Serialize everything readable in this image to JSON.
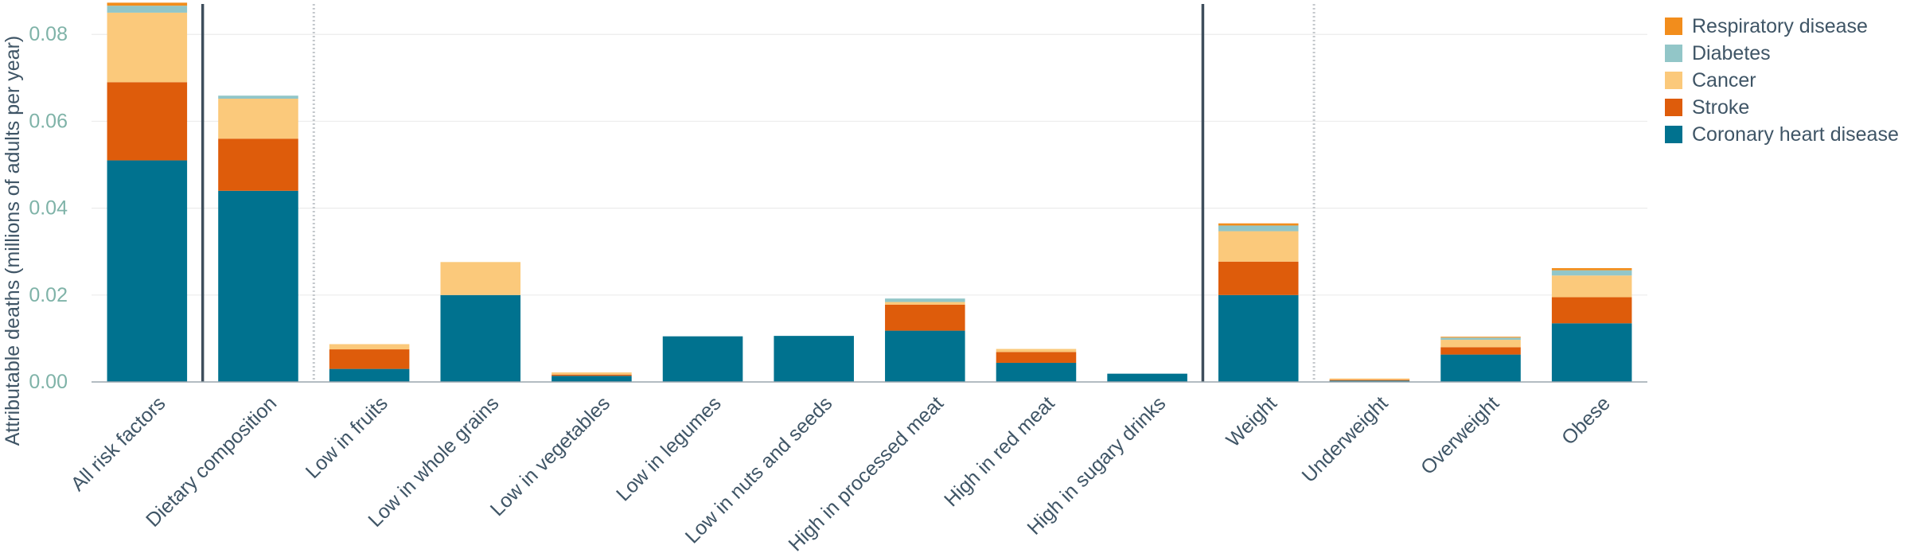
{
  "chart_data": {
    "type": "bar",
    "stacked": true,
    "ylabel": "Attributable deaths (millions of adults per year)",
    "xlabel": "",
    "ylim": [
      0,
      0.087
    ],
    "yticks": [
      0,
      0.02,
      0.04,
      0.06,
      0.08
    ],
    "ytick_labels": [
      "0.00",
      "0.02",
      "0.04",
      "0.06",
      "0.08"
    ],
    "grid": true,
    "legend_position": "top-right",
    "categories": [
      "All risk factors",
      "Dietary composition",
      "Low in fruits",
      "Low in whole grains",
      "Low in vegetables",
      "Low in legumes",
      "Low in nuts and seeds",
      "High in processed meat",
      "High in red meat",
      "High in sugary drinks",
      "Weight",
      "Underweight",
      "Overweight",
      "Obese"
    ],
    "series": [
      {
        "name": "Coronary heart disease",
        "color": "#00728f",
        "values": [
          0.051,
          0.044,
          0.003,
          0.02,
          0.0014,
          0.0105,
          0.0106,
          0.0118,
          0.0044,
          0.0019,
          0.02,
          0.0003,
          0.0063,
          0.0135
        ]
      },
      {
        "name": "Stroke",
        "color": "#de5c0b",
        "values": [
          0.018,
          0.012,
          0.0045,
          0.0,
          0.0003,
          0.0,
          0.0,
          0.006,
          0.0025,
          0.0,
          0.0077,
          0.0002,
          0.0017,
          0.006
        ]
      },
      {
        "name": "Cancer",
        "color": "#fbc97b",
        "values": [
          0.016,
          0.0092,
          0.0012,
          0.0076,
          0.0005,
          0.0,
          0.0,
          0.0006,
          0.0007,
          0.0,
          0.007,
          0.0003,
          0.0017,
          0.005
        ]
      },
      {
        "name": "Diabetes",
        "color": "#92c6c8",
        "values": [
          0.0016,
          0.0007,
          0.0,
          0.0,
          0.0,
          0.0,
          0.0,
          0.0008,
          0.0,
          0.0,
          0.0013,
          0.0,
          0.0005,
          0.0012
        ]
      },
      {
        "name": "Respiratory disease",
        "color": "#f28d1c",
        "values": [
          0.0007,
          0.0,
          0.0,
          0.0,
          0.0,
          0.0,
          0.0,
          0.0,
          0.0,
          0.0,
          0.0005,
          0.0,
          0.0002,
          0.0005
        ]
      }
    ],
    "group_separators": [
      {
        "after_index": 0,
        "style": "solid"
      },
      {
        "after_index": 1,
        "style": "dotted"
      },
      {
        "after_index": 9,
        "style": "solid"
      },
      {
        "after_index": 10,
        "style": "dotted"
      }
    ],
    "legend_order": [
      "Respiratory disease",
      "Diabetes",
      "Cancer",
      "Stroke",
      "Coronary heart disease"
    ]
  }
}
